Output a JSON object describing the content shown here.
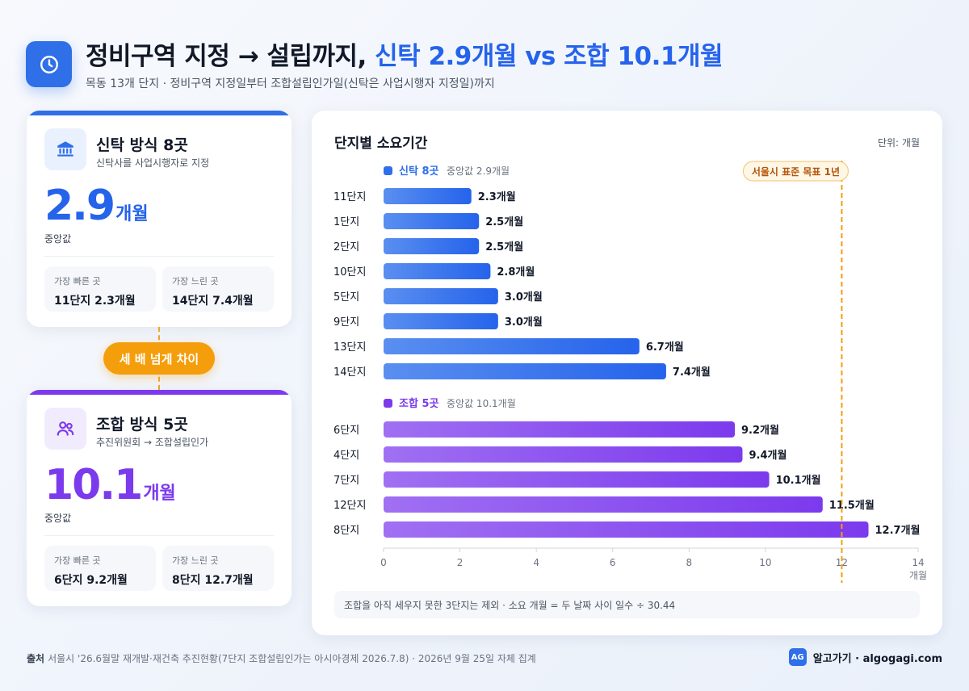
{
  "header": {
    "title_main": "정비구역 지정 → 설립까지,",
    "title_highlight": "신탁 2.9개월 vs 조합 10.1개월",
    "subtitle": "목동 13개 단지 · 정비구역 지정일부터 조합설립인가일(신탁은 사업시행자 지정일)까지",
    "logo_icon": "clock-icon"
  },
  "trust_card": {
    "title": "신탁 방식 8곳",
    "subtitle": "신탁사를 사업시행자로 지정",
    "icon": "bank-icon",
    "value": "2.9",
    "unit": "개월",
    "median_label": "중앙값",
    "fastest_label": "가장 빠른 곳",
    "fastest_value": "11단지 2.3개월",
    "slowest_label": "가장 느린 곳",
    "slowest_value": "14단지 7.4개월",
    "accent": "#2f6fe8"
  },
  "union_card": {
    "title": "조합 방식 5곳",
    "subtitle": "추진위원회 → 조합설립인가",
    "icon": "people-icon",
    "value": "10.1",
    "unit": "개월",
    "median_label": "중앙값",
    "fastest_label": "가장 빠른 곳",
    "fastest_value": "6단지 9.2개월",
    "slowest_label": "가장 느린 곳",
    "slowest_value": "8단지 12.7개월",
    "accent": "#7c3aed"
  },
  "compare_pill": "세 배 넘게 차이",
  "chart": {
    "title": "단지별 소요기간",
    "unit_label": "단위: 개월",
    "note": "조합을 아직 세우지 못한 3단지는 제외 · 소요 개월 = 두 날짜 사이 일수 ÷ 30.44"
  },
  "chart_data": {
    "type": "bar",
    "orientation": "horizontal",
    "title": "단지별 소요기간",
    "xlabel": "개월",
    "xlim": [
      0,
      14
    ],
    "xticks": [
      0,
      2,
      4,
      6,
      8,
      10,
      12,
      14
    ],
    "value_suffix": "개월",
    "reference_line": {
      "value": 12,
      "label": "서울시 표준 목표 1년",
      "color": "#f59e0b"
    },
    "groups": [
      {
        "name": "신탁 8곳",
        "median_label": "중앙값 2.9개월",
        "color": "#2f6fe8",
        "categories": [
          "11단지",
          "1단지",
          "2단지",
          "10단지",
          "5단지",
          "9단지",
          "13단지",
          "14단지"
        ],
        "values": [
          2.3,
          2.5,
          2.5,
          2.8,
          3.0,
          3.0,
          6.7,
          7.4
        ]
      },
      {
        "name": "조합 5곳",
        "median_label": "중앙값 10.1개월",
        "color": "#7c3aed",
        "categories": [
          "6단지",
          "4단지",
          "7단지",
          "12단지",
          "8단지"
        ],
        "values": [
          9.2,
          9.4,
          10.1,
          11.5,
          12.7
        ]
      }
    ]
  },
  "footer": {
    "source_label": "출처",
    "source_text": "서울시 '26.6월말 재개발·재건축 추진현황(7단지 조합설립인가는 아시아경제 2026.7.8) · 2026년 9월 25일 자체 집계",
    "brand_mark": "AG",
    "brand_text": "알고가기 · algogagi.com"
  }
}
